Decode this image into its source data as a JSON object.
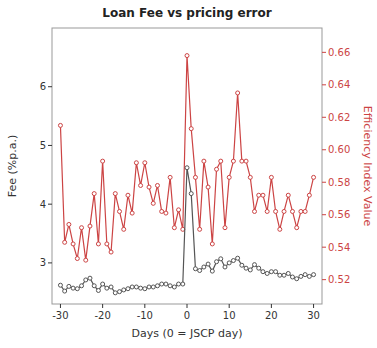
{
  "chart_data": {
    "type": "line",
    "title": "Loan Fee vs pricing error",
    "xlabel": "Days (0 = JSCP day)",
    "ylabel": "Fee (%p.a.)",
    "y2label": "Efficiency Index Value",
    "grid": false,
    "xlim": [
      -32,
      32
    ],
    "xticks": [
      -30,
      -20,
      -10,
      0,
      10,
      20,
      30
    ],
    "ylim": [
      2.3,
      7.0
    ],
    "yticks": [
      3,
      4,
      5,
      6
    ],
    "y2lim": [
      0.505,
      0.675
    ],
    "y2ticks": [
      0.52,
      0.54,
      0.56,
      0.58,
      {
        "value": 0.6,
        "label": "0.60"
      },
      0.62,
      0.64,
      0.66
    ],
    "x": [
      -30,
      -29,
      -28,
      -27,
      -26,
      -25,
      -24,
      -23,
      -22,
      -21,
      -20,
      -19,
      -18,
      -17,
      -16,
      -15,
      -14,
      -13,
      -12,
      -11,
      -10,
      -9,
      -8,
      -7,
      -6,
      -5,
      -4,
      -3,
      -2,
      -1,
      0,
      1,
      2,
      3,
      4,
      5,
      6,
      7,
      8,
      9,
      10,
      11,
      12,
      13,
      14,
      15,
      16,
      17,
      18,
      19,
      20,
      21,
      22,
      23,
      24,
      25,
      26,
      27,
      28,
      29,
      30
    ],
    "series": [
      {
        "color": "#555555",
        "marker": "circle",
        "values": [
          2.62,
          2.52,
          2.6,
          2.57,
          2.56,
          2.61,
          2.71,
          2.74,
          2.61,
          2.53,
          2.64,
          2.57,
          2.59,
          2.49,
          2.51,
          2.54,
          2.56,
          2.59,
          2.59,
          2.57,
          2.56,
          2.59,
          2.59,
          2.61,
          2.64,
          2.64,
          2.61,
          2.59,
          2.64,
          2.64,
          4.62,
          4.18,
          2.9,
          2.87,
          2.93,
          2.98,
          2.86,
          3.02,
          3.07,
          2.93,
          3.0,
          3.04,
          3.08,
          2.96,
          2.91,
          2.88,
          2.97,
          2.91,
          2.85,
          2.82,
          2.85,
          2.85,
          2.79,
          2.79,
          2.82,
          2.76,
          2.73,
          2.77,
          2.8,
          2.77,
          2.8
        ]
      },
      {
        "color": "#cc4444",
        "marker": "circle",
        "axis": "y2",
        "values": [
          0.615,
          0.543,
          0.554,
          0.542,
          0.533,
          0.552,
          0.532,
          0.553,
          0.573,
          0.542,
          0.593,
          0.542,
          0.537,
          0.573,
          0.562,
          0.551,
          0.572,
          0.561,
          0.592,
          0.578,
          0.592,
          0.577,
          0.567,
          0.578,
          0.562,
          0.561,
          0.583,
          0.552,
          0.563,
          0.551,
          0.658,
          0.613,
          0.583,
          0.551,
          0.593,
          0.577,
          0.542,
          0.588,
          0.593,
          0.552,
          0.583,
          0.593,
          0.635,
          0.593,
          0.593,
          0.583,
          0.562,
          0.572,
          0.572,
          0.562,
          0.583,
          0.562,
          0.551,
          0.562,
          0.572,
          0.562,
          0.552,
          0.562,
          0.562,
          0.572,
          0.583
        ]
      }
    ]
  }
}
